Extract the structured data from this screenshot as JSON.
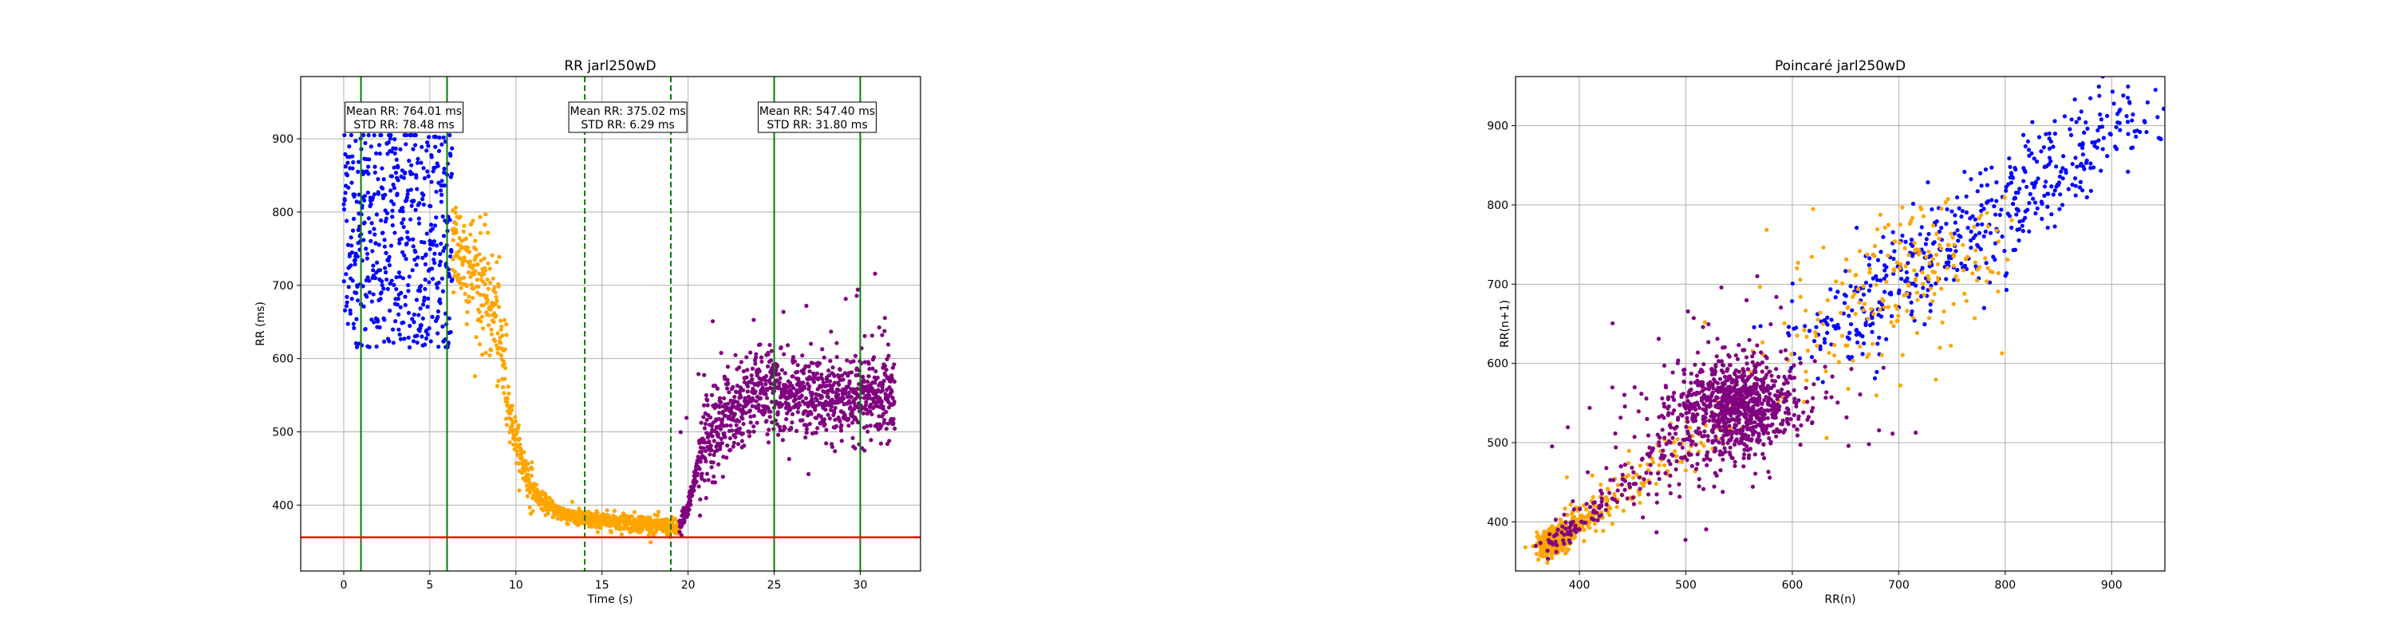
{
  "chart_data": [
    {
      "type": "scatter",
      "title": "RR jarl250wD",
      "xlabel": "Time (s)",
      "ylabel": "RR (ms)",
      "xlim": [
        -2.5,
        33.5
      ],
      "ylim": [
        310,
        985
      ],
      "xticks": [
        0,
        5,
        10,
        15,
        20,
        25,
        30
      ],
      "yticks": [
        400,
        500,
        600,
        700,
        800,
        900
      ],
      "grid": true,
      "series": [
        {
          "color": "#0000ff",
          "segment": "baseline",
          "x_range": [
            0,
            6.3
          ],
          "mean": 764.01,
          "std": 78.48
        },
        {
          "color": "#ffa500",
          "segment": "transition",
          "x_range": [
            6.3,
            19.5
          ],
          "profile": [
            [
              6.3,
              760
            ],
            [
              7.0,
              740
            ],
            [
              8.0,
              700
            ],
            [
              8.8,
              660
            ],
            [
              9.3,
              590
            ],
            [
              9.7,
              520
            ],
            [
              10.2,
              470
            ],
            [
              10.8,
              430
            ],
            [
              11.5,
              405
            ],
            [
              12.5,
              390
            ],
            [
              14,
              380
            ],
            [
              17,
              376
            ],
            [
              19.5,
              368
            ]
          ]
        },
        {
          "color": "#800080",
          "segment": "recovery",
          "x_range": [
            19.5,
            32
          ],
          "profile": [
            [
              19.5,
              368
            ],
            [
              20.0,
              395
            ],
            [
              20.5,
              450
            ],
            [
              21.0,
              490
            ],
            [
              21.8,
              510
            ],
            [
              23.0,
              540
            ],
            [
              24.5,
              560
            ],
            [
              26.0,
              550
            ],
            [
              28.0,
              545
            ],
            [
              30.0,
              550
            ],
            [
              32.0,
              545
            ]
          ]
        }
      ],
      "vlines": [
        {
          "x": 1,
          "style": "solid",
          "color": "#008000"
        },
        {
          "x": 6,
          "style": "solid",
          "color": "#008000"
        },
        {
          "x": 14,
          "style": "dashed",
          "color": "#008000"
        },
        {
          "x": 19,
          "style": "dashed",
          "color": "#008000"
        },
        {
          "x": 25,
          "style": "solid",
          "color": "#008000"
        },
        {
          "x": 30,
          "style": "solid",
          "color": "#008000"
        }
      ],
      "hline": {
        "y": 356,
        "color": "#ff0000"
      },
      "annotations": [
        {
          "x": 3.5,
          "line1": "Mean RR: 764.01 ms",
          "line2": "STD RR: 78.48 ms"
        },
        {
          "x": 16.5,
          "line1": "Mean RR: 375.02 ms",
          "line2": "STD RR: 6.29 ms"
        },
        {
          "x": 27.5,
          "line1": "Mean RR: 547.40 ms",
          "line2": "STD RR: 31.80 ms"
        }
      ]
    },
    {
      "type": "scatter",
      "title": "Poincaré jarl250wD",
      "xlabel": "RR(n)",
      "ylabel": "RR(n+1)",
      "xlim": [
        340,
        950
      ],
      "ylim": [
        338,
        962
      ],
      "xticks": [
        400,
        500,
        600,
        700,
        800,
        900
      ],
      "yticks": [
        400,
        500,
        600,
        700,
        800,
        900
      ],
      "grid": true,
      "series": [
        {
          "color": "#0000ff",
          "segment": "baseline",
          "center": [
            764,
            764
          ],
          "spread": 78
        },
        {
          "color": "#ffa500",
          "segment": "transition"
        },
        {
          "color": "#800080",
          "segment": "recovery"
        }
      ]
    }
  ]
}
